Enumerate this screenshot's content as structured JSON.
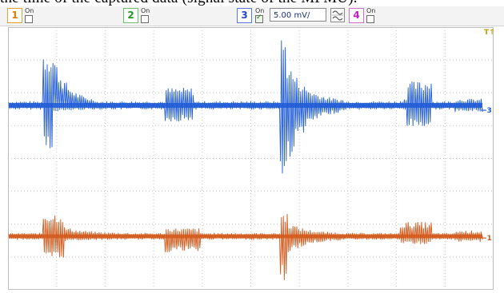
{
  "caption_fragment": "the time of the captured data (signal state of the MPMU).",
  "toolbar": {
    "channels": [
      {
        "number": "1",
        "on_label": "On",
        "enabled": false,
        "color": "#e07b00"
      },
      {
        "number": "2",
        "on_label": "On",
        "enabled": false,
        "color": "#1f9a1f"
      },
      {
        "number": "3",
        "on_label": "On",
        "enabled": true,
        "color": "#2645c8"
      },
      {
        "number": "4",
        "on_label": "On",
        "enabled": false,
        "color": "#c020c0"
      }
    ],
    "scale_value": "5.00 mV/",
    "coupling_icon": "ac-dc-coupling-icon"
  },
  "scope": {
    "trigger_marker": "T↑",
    "ch3_marker": "←3",
    "ch1_marker": "←1",
    "ch3_color": "#1f5bd6",
    "ch1_color": "#d2581a",
    "trigger_color": "#c8a000"
  }
}
